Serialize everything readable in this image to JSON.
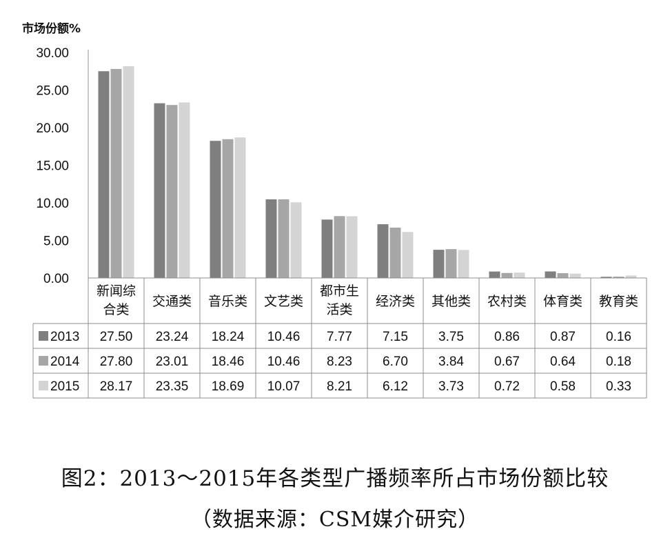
{
  "chart_data": {
    "type": "bar",
    "ylabel": "市场份额%",
    "xlabel": "",
    "ylim": [
      0,
      30
    ],
    "yticks": [
      "30.00",
      "25.00",
      "20.00",
      "15.00",
      "10.00",
      "5.00",
      "0.00"
    ],
    "grid": false,
    "legend": "table-left",
    "categories": [
      [
        "新闻综",
        "合类"
      ],
      [
        "交通类"
      ],
      [
        "音乐类"
      ],
      [
        "文艺类"
      ],
      [
        "都市生",
        "活类"
      ],
      [
        "经济类"
      ],
      [
        "其他类"
      ],
      [
        "农村类"
      ],
      [
        "体育类"
      ],
      [
        "教育类"
      ]
    ],
    "series": [
      {
        "name": "2013",
        "color": "#7f7f7f",
        "values": [
          27.5,
          23.24,
          18.24,
          10.46,
          7.77,
          7.15,
          3.75,
          0.86,
          0.87,
          0.16
        ],
        "labels": [
          "27.50",
          "23.24",
          "18.24",
          "10.46",
          "7.77",
          "7.15",
          "3.75",
          "0.86",
          "0.87",
          "0.16"
        ]
      },
      {
        "name": "2014",
        "color": "#a6a6a6",
        "values": [
          27.8,
          23.01,
          18.46,
          10.46,
          8.23,
          6.7,
          3.84,
          0.67,
          0.64,
          0.18
        ],
        "labels": [
          "27.80",
          "23.01",
          "18.46",
          "10.46",
          "8.23",
          "6.70",
          "3.84",
          "0.67",
          "0.64",
          "0.18"
        ]
      },
      {
        "name": "2015",
        "color": "#d4d4d4",
        "values": [
          28.17,
          23.35,
          18.69,
          10.07,
          8.21,
          6.12,
          3.73,
          0.72,
          0.58,
          0.33
        ],
        "labels": [
          "28.17",
          "23.35",
          "18.69",
          "10.07",
          "8.21",
          "6.12",
          "3.73",
          "0.72",
          "0.58",
          "0.33"
        ]
      }
    ]
  },
  "caption": {
    "title": "图2：2013～2015年各类型广播频率所占市场份额比较",
    "source": "（数据来源：CSM媒介研究）"
  }
}
